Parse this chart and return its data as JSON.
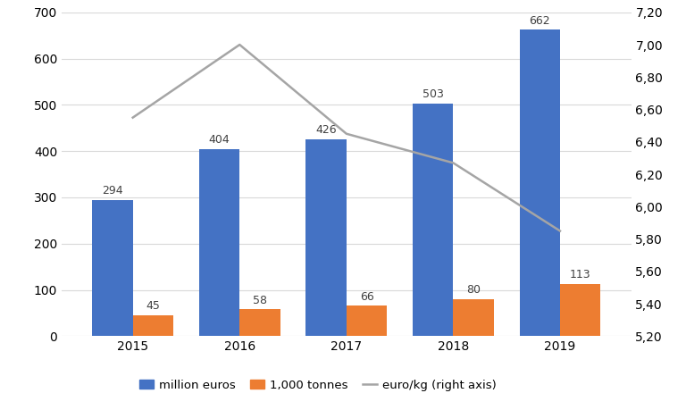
{
  "years": [
    "2015",
    "2016",
    "2017",
    "2018",
    "2019"
  ],
  "million_euros": [
    294,
    404,
    426,
    503,
    662
  ],
  "thousand_tonnes": [
    45,
    58,
    66,
    80,
    113
  ],
  "euro_per_kg": [
    6.55,
    7.0,
    6.45,
    6.27,
    5.85
  ],
  "bar_color_blue": "#4472C4",
  "bar_color_orange": "#ED7D31",
  "line_color": "#A5A5A5",
  "left_ylim": [
    0,
    700
  ],
  "left_yticks": [
    0,
    100,
    200,
    300,
    400,
    500,
    600,
    700
  ],
  "right_ylim": [
    5.2,
    7.2
  ],
  "right_yticks": [
    5.2,
    5.4,
    5.6,
    5.8,
    6.0,
    6.2,
    6.4,
    6.6,
    6.8,
    7.0,
    7.2
  ],
  "legend_labels": [
    "million euros",
    "1,000 tonnes",
    "euro/kg (right axis)"
  ],
  "bar_width": 0.38,
  "background_color": "#ffffff",
  "grid_color": "#d9d9d9",
  "label_fontsize": 9,
  "tick_fontsize": 10
}
